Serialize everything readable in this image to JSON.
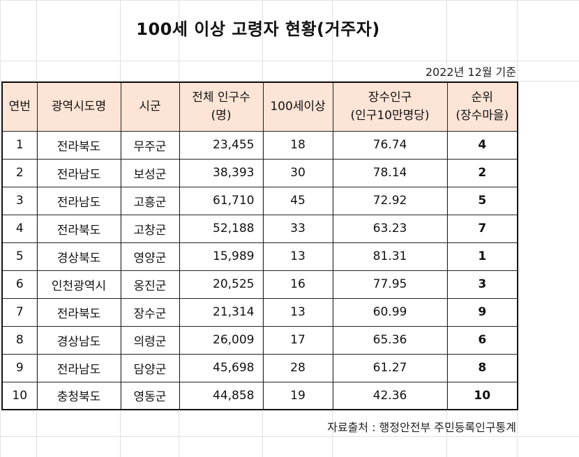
{
  "title": "100세 이상 고령자 현황(거주자)",
  "basis": "2022년 12월 기준",
  "headers": {
    "no": "연번",
    "region": "광역시도명",
    "county": "시군",
    "population_1": "전체 인구수",
    "population_2": "(명)",
    "centenarians": "100세이상",
    "longevity_1": "장수인구",
    "longevity_2": "(인구10만명당)",
    "rank_1": "순위",
    "rank_2": "(장수마을)"
  },
  "rows": [
    {
      "no": "1",
      "region": "전라북도",
      "county": "무주군",
      "population": "23,455",
      "centenarians": "18",
      "longevity": "76.74",
      "rank": "4"
    },
    {
      "no": "2",
      "region": "전라남도",
      "county": "보성군",
      "population": "38,393",
      "centenarians": "30",
      "longevity": "78.14",
      "rank": "2"
    },
    {
      "no": "3",
      "region": "전라남도",
      "county": "고흥군",
      "population": "61,710",
      "centenarians": "45",
      "longevity": "72.92",
      "rank": "5"
    },
    {
      "no": "4",
      "region": "전라북도",
      "county": "고창군",
      "population": "52,188",
      "centenarians": "33",
      "longevity": "63.23",
      "rank": "7"
    },
    {
      "no": "5",
      "region": "경상북도",
      "county": "영양군",
      "population": "15,989",
      "centenarians": "13",
      "longevity": "81.31",
      "rank": "1"
    },
    {
      "no": "6",
      "region": "인천광역시",
      "county": "옹진군",
      "population": "20,525",
      "centenarians": "16",
      "longevity": "77.95",
      "rank": "3"
    },
    {
      "no": "7",
      "region": "전라북도",
      "county": "장수군",
      "population": "21,314",
      "centenarians": "13",
      "longevity": "60.99",
      "rank": "9"
    },
    {
      "no": "8",
      "region": "경상남도",
      "county": "의령군",
      "population": "26,009",
      "centenarians": "17",
      "longevity": "65.36",
      "rank": "6"
    },
    {
      "no": "9",
      "region": "전라남도",
      "county": "담양군",
      "population": "45,698",
      "centenarians": "28",
      "longevity": "61.27",
      "rank": "8"
    },
    {
      "no": "10",
      "region": "충청북도",
      "county": "영동군",
      "population": "44,858",
      "centenarians": "19",
      "longevity": "42.36",
      "rank": "10"
    }
  ],
  "source": "자료출처 : 행정안전부 주민등록인구통계",
  "colors": {
    "header_bg": "#fce4d6",
    "border": "#222222",
    "gridline": "#e0e0e0"
  }
}
